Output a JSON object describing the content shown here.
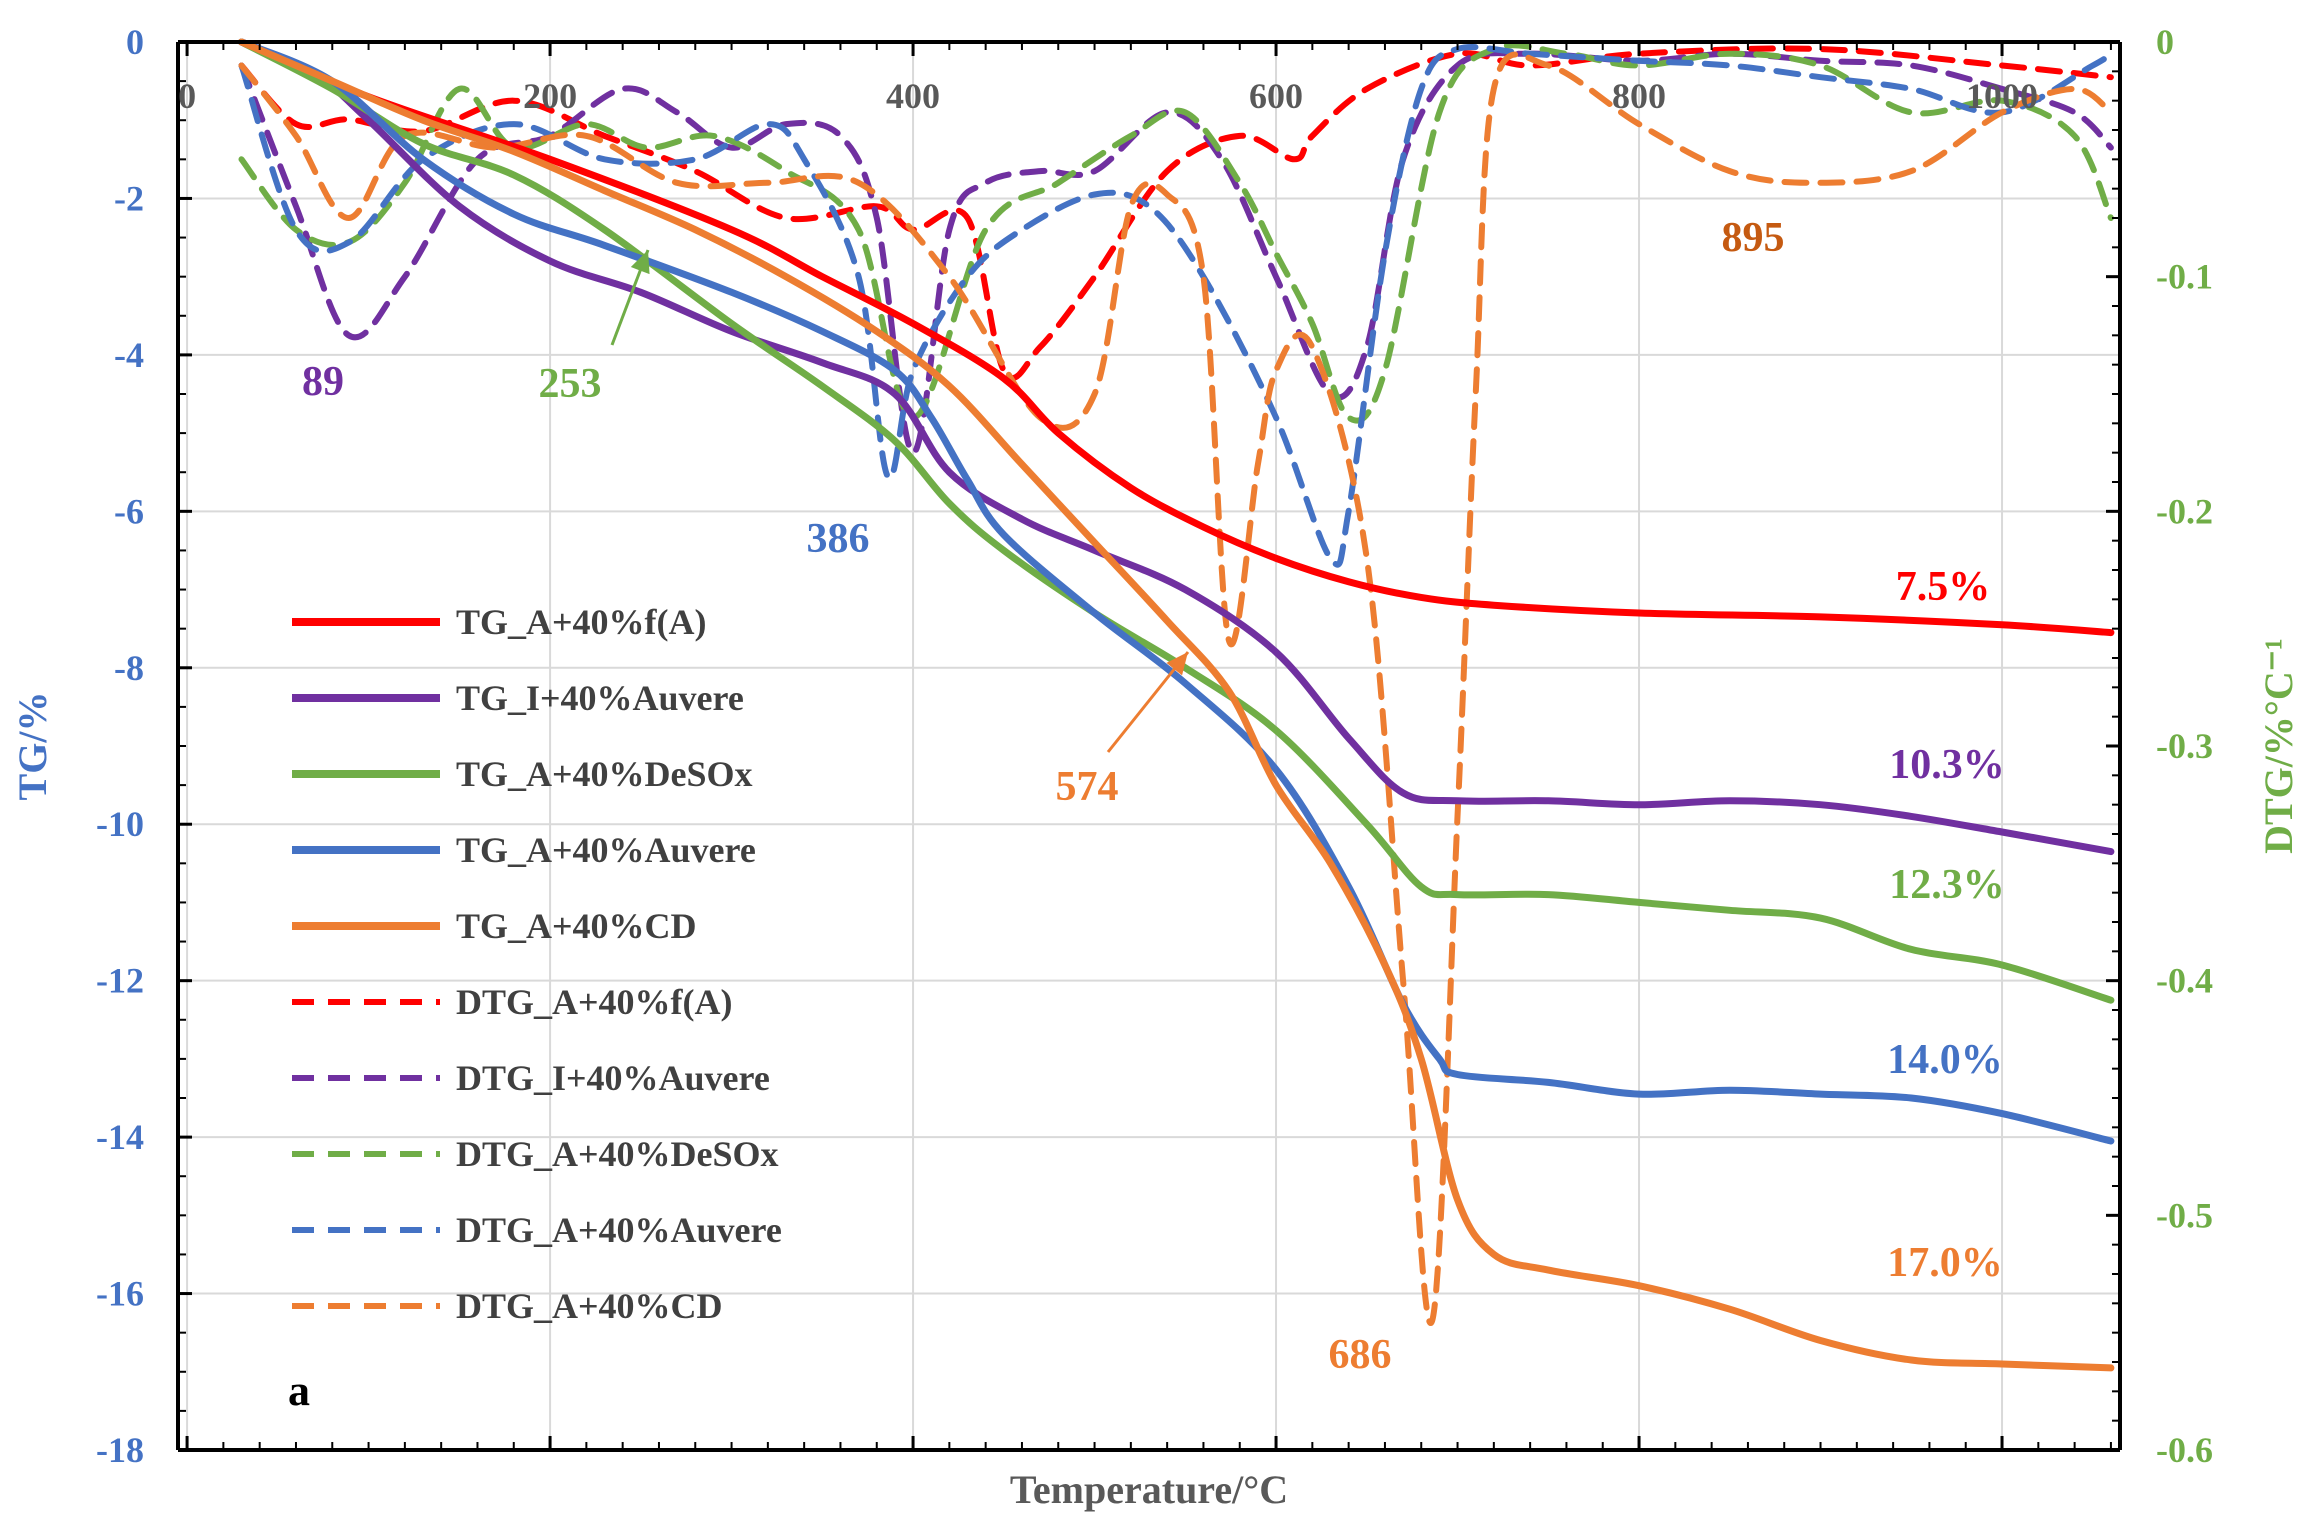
{
  "chart_data": {
    "type": "line",
    "title": "",
    "panel_label": "a",
    "xlabel": "Temperature/°C",
    "ylabel": "TG/%",
    "ylabel_right": "DTG/%°C⁻¹",
    "xlim": [
      -5,
      1065
    ],
    "ylim": [
      -18,
      0
    ],
    "ylim_right": [
      -0.6,
      0
    ],
    "x_ticks": [
      "0",
      "200",
      "400",
      "600",
      "800",
      "1000"
    ],
    "x_tick_values": [
      0,
      200,
      400,
      600,
      800,
      1000
    ],
    "y_ticks": [
      "0",
      "-2",
      "-4",
      "-6",
      "-8",
      "-10",
      "-12",
      "-14",
      "-16",
      "-18"
    ],
    "y_tick_values": [
      0,
      -2,
      -4,
      -6,
      -8,
      -10,
      -12,
      -14,
      -16,
      -18
    ],
    "y2_ticks": [
      "0",
      "-0.1",
      "-0.2",
      "-0.3",
      "-0.4",
      "-0.5",
      "-0.6"
    ],
    "y2_tick_values": [
      0,
      -0.1,
      -0.2,
      -0.3,
      -0.4,
      -0.5,
      -0.6
    ],
    "grid": true,
    "legend_position": "left-middle",
    "series": [
      {
        "name": "TG_A+40%f(A)",
        "axis": "left",
        "style": "solid",
        "color": "#FF0000",
        "x": [
          30,
          100,
          200,
          300,
          350,
          400,
          450,
          480,
          520,
          560,
          600,
          640,
          680,
          720,
          800,
          900,
          1000,
          1060
        ],
        "y": [
          0,
          -0.7,
          -1.5,
          -2.4,
          -3.0,
          -3.6,
          -4.3,
          -5.0,
          -5.7,
          -6.2,
          -6.6,
          -6.9,
          -7.1,
          -7.2,
          -7.3,
          -7.35,
          -7.45,
          -7.55
        ]
      },
      {
        "name": "TG_I+40%Auvere",
        "axis": "left",
        "style": "solid",
        "color": "#7030A0",
        "x": [
          30,
          70,
          100,
          150,
          200,
          250,
          300,
          350,
          390,
          420,
          460,
          500,
          550,
          600,
          640,
          670,
          700,
          750,
          800,
          850,
          900,
          950,
          1000,
          1060
        ],
        "y": [
          0,
          -0.4,
          -1.0,
          -2.1,
          -2.8,
          -3.2,
          -3.7,
          -4.1,
          -4.5,
          -5.5,
          -6.1,
          -6.5,
          -7.0,
          -7.8,
          -8.9,
          -9.6,
          -9.7,
          -9.7,
          -9.75,
          -9.7,
          -9.75,
          -9.9,
          -10.1,
          -10.35
        ]
      },
      {
        "name": "TG_A+40%DeSOx",
        "axis": "left",
        "style": "solid",
        "color": "#70AD47",
        "x": [
          30,
          80,
          130,
          180,
          230,
          300,
          350,
          390,
          420,
          450,
          500,
          550,
          600,
          650,
          680,
          700,
          750,
          800,
          850,
          900,
          950,
          1000,
          1060
        ],
        "y": [
          0,
          -0.6,
          -1.3,
          -1.7,
          -2.4,
          -3.6,
          -4.4,
          -5.1,
          -5.9,
          -6.5,
          -7.3,
          -8.0,
          -8.8,
          -10.0,
          -10.8,
          -10.9,
          -10.9,
          -11.0,
          -11.1,
          -11.2,
          -11.6,
          -11.8,
          -12.25
        ]
      },
      {
        "name": "TG_A+40%Auvere",
        "axis": "left",
        "style": "solid",
        "color": "#4472C4",
        "x": [
          30,
          80,
          130,
          180,
          230,
          300,
          350,
          390,
          410,
          430,
          450,
          500,
          550,
          600,
          640,
          670,
          690,
          700,
          750,
          800,
          850,
          900,
          950,
          1000,
          1060
        ],
        "y": [
          0,
          -0.5,
          -1.5,
          -2.2,
          -2.6,
          -3.2,
          -3.7,
          -4.2,
          -4.8,
          -5.6,
          -6.3,
          -7.3,
          -8.2,
          -9.3,
          -10.8,
          -12.3,
          -13.0,
          -13.2,
          -13.3,
          -13.45,
          -13.4,
          -13.45,
          -13.5,
          -13.7,
          -14.05
        ]
      },
      {
        "name": "TG_A+40%CD",
        "axis": "left",
        "style": "solid",
        "color": "#ED7D31",
        "x": [
          30,
          80,
          130,
          180,
          230,
          280,
          330,
          380,
          420,
          460,
          500,
          540,
          574,
          600,
          630,
          660,
          680,
          700,
          720,
          750,
          800,
          850,
          900,
          950,
          1000,
          1060
        ],
        "y": [
          0,
          -0.5,
          -1.0,
          -1.4,
          -1.9,
          -2.4,
          -3.0,
          -3.7,
          -4.4,
          -5.4,
          -6.4,
          -7.4,
          -8.3,
          -9.5,
          -10.5,
          -11.8,
          -13.0,
          -14.8,
          -15.5,
          -15.7,
          -15.9,
          -16.2,
          -16.6,
          -16.85,
          -16.9,
          -16.95
        ]
      },
      {
        "name": "DTG_A+40%f(A)",
        "axis": "right",
        "style": "dashed",
        "color": "#FF0000",
        "x": [
          30,
          60,
          89,
          130,
          180,
          230,
          280,
          330,
          380,
          400,
          430,
          450,
          470,
          500,
          540,
          580,
          610,
          620,
          650,
          700,
          740,
          800,
          900,
          1000,
          1060
        ],
        "y": [
          -0.01,
          -0.035,
          -0.033,
          -0.038,
          -0.025,
          -0.04,
          -0.055,
          -0.075,
          -0.07,
          -0.08,
          -0.075,
          -0.14,
          -0.13,
          -0.1,
          -0.055,
          -0.04,
          -0.05,
          -0.04,
          -0.02,
          -0.005,
          -0.01,
          -0.005,
          -0.003,
          -0.01,
          -0.015
        ]
      },
      {
        "name": "DTG_I+40%Auvere",
        "axis": "right",
        "style": "dashed",
        "color": "#7030A0",
        "x": [
          30,
          60,
          89,
          120,
          160,
          200,
          240,
          270,
          300,
          330,
          360,
          380,
          400,
          420,
          440,
          470,
          500,
          540,
          570,
          600,
          630,
          650,
          670,
          700,
          740,
          800,
          850,
          900,
          950,
          1000,
          1040,
          1060
        ],
        "y": [
          -0.01,
          -0.07,
          -0.125,
          -0.1,
          -0.05,
          -0.04,
          -0.02,
          -0.03,
          -0.045,
          -0.035,
          -0.04,
          -0.075,
          -0.175,
          -0.08,
          -0.06,
          -0.055,
          -0.055,
          -0.03,
          -0.05,
          -0.1,
          -0.15,
          -0.13,
          -0.05,
          -0.01,
          -0.005,
          -0.008,
          -0.005,
          -0.008,
          -0.01,
          -0.02,
          -0.03,
          -0.045
        ]
      },
      {
        "name": "DTG_A+40%DeSOx",
        "axis": "right",
        "style": "dashed",
        "color": "#70AD47",
        "x": [
          30,
          60,
          90,
          120,
          150,
          180,
          220,
          253,
          290,
          330,
          370,
          400,
          440,
          480,
          520,
          550,
          580,
          600,
          620,
          640,
          660,
          690,
          720,
          760,
          800,
          850,
          900,
          950,
          1000,
          1040,
          1060
        ],
        "y": [
          -0.05,
          -0.08,
          -0.085,
          -0.06,
          -0.02,
          -0.045,
          -0.035,
          -0.045,
          -0.04,
          -0.055,
          -0.08,
          -0.16,
          -0.08,
          -0.06,
          -0.04,
          -0.03,
          -0.06,
          -0.09,
          -0.12,
          -0.16,
          -0.14,
          -0.03,
          -0.003,
          -0.005,
          -0.01,
          -0.005,
          -0.01,
          -0.03,
          -0.025,
          -0.04,
          -0.075
        ]
      },
      {
        "name": "DTG_A+40%Auvere",
        "axis": "right",
        "style": "dashed",
        "color": "#4472C4",
        "x": [
          30,
          60,
          90,
          130,
          180,
          230,
          280,
          320,
          340,
          370,
          386,
          400,
          430,
          460,
          500,
          530,
          560,
          600,
          630,
          640,
          660,
          680,
          700,
          740,
          800,
          850,
          900,
          950,
          1000,
          1050,
          1060
        ],
        "y": [
          -0.01,
          -0.08,
          -0.085,
          -0.05,
          -0.035,
          -0.05,
          -0.05,
          -0.035,
          -0.05,
          -0.1,
          -0.185,
          -0.14,
          -0.1,
          -0.08,
          -0.065,
          -0.07,
          -0.1,
          -0.16,
          -0.22,
          -0.2,
          -0.09,
          -0.02,
          -0.003,
          -0.005,
          -0.008,
          -0.01,
          -0.015,
          -0.02,
          -0.03,
          -0.01,
          -0.005
        ]
      },
      {
        "name": "DTG_A+40%CD",
        "axis": "right",
        "style": "dashed",
        "color": "#ED7D31",
        "x": [
          30,
          60,
          89,
          120,
          170,
          220,
          270,
          320,
          370,
          420,
          470,
          500,
          520,
          540,
          560,
          574,
          590,
          600,
          620,
          650,
          670,
          686,
          700,
          710,
          720,
          750,
          800,
          850,
          895,
          950,
          1000,
          1040,
          1060
        ],
        "y": [
          -0.01,
          -0.04,
          -0.075,
          -0.04,
          -0.045,
          -0.04,
          -0.06,
          -0.06,
          -0.06,
          -0.1,
          -0.16,
          -0.15,
          -0.07,
          -0.065,
          -0.1,
          -0.255,
          -0.18,
          -0.14,
          -0.13,
          -0.22,
          -0.4,
          -0.545,
          -0.33,
          -0.15,
          -0.02,
          -0.01,
          -0.035,
          -0.055,
          -0.06,
          -0.055,
          -0.03,
          -0.02,
          -0.03
        ]
      }
    ],
    "annotations": [
      {
        "text": "89",
        "color": "#7030A0"
      },
      {
        "text": "253",
        "color": "#70AD47",
        "arrow": true
      },
      {
        "text": "386",
        "color": "#4472C4"
      },
      {
        "text": "574",
        "color": "#ED7D31",
        "arrow": true
      },
      {
        "text": "686",
        "color": "#ED7D31"
      },
      {
        "text": "895",
        "color": "#C55A11"
      },
      {
        "text": "7.5%",
        "color": "#FF0000"
      },
      {
        "text": "10.3%",
        "color": "#7030A0"
      },
      {
        "text": "12.3%",
        "color": "#70AD47"
      },
      {
        "text": "14.0%",
        "color": "#4472C4"
      },
      {
        "text": "17.0%",
        "color": "#ED7D31"
      }
    ]
  }
}
